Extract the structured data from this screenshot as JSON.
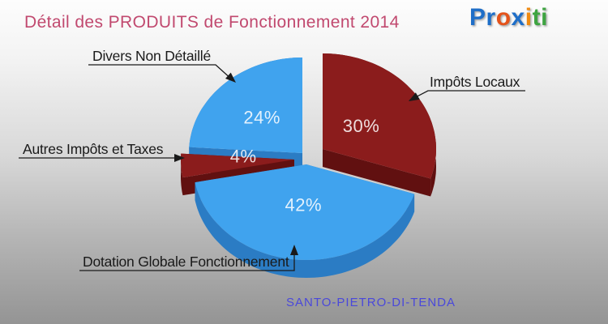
{
  "header": {
    "title": "Détail des PRODUITS de Fonctionnement 2014"
  },
  "logo": {
    "text": "Proxiti",
    "letters": [
      {
        "ch": "P",
        "color": "#1e6ec8"
      },
      {
        "ch": "r",
        "color": "#1e6ec8"
      },
      {
        "ch": "o",
        "color": "#e4531b"
      },
      {
        "ch": "x",
        "color": "#1e6ec8"
      },
      {
        "ch": "i",
        "color": "#f08a10"
      },
      {
        "ch": "t",
        "color": "#3ea441"
      },
      {
        "ch": "i",
        "color": "#3ea441"
      }
    ]
  },
  "footer": {
    "commune": "SANTO-PIETRO-DI-TENDA",
    "color": "#4a48da"
  },
  "chart_data": {
    "type": "pie",
    "style": "3d-exploded",
    "title": "Détail des PRODUITS de Fonctionnement 2014",
    "unit": "%",
    "start_angle_deg": 90,
    "direction": "clockwise",
    "labels_show_percent": true,
    "slices": [
      {
        "label": "Impôts Locaux",
        "value": 30,
        "color": "#8b1c1c",
        "side_color": "#611010"
      },
      {
        "label": "Dotation Globale Fonctionnement",
        "value": 42,
        "color": "#40a3ee",
        "side_color": "#2b7cc4"
      },
      {
        "label": "Autres Impôts et Taxes",
        "value": 4,
        "color": "#8b1c1c",
        "side_color": "#611010"
      },
      {
        "label": "Divers Non Détaillé",
        "value": 24,
        "color": "#40a3ee",
        "side_color": "#2b7cc4"
      }
    ],
    "percent_label_color": "#ffffff",
    "title_color": "#c1496f"
  }
}
